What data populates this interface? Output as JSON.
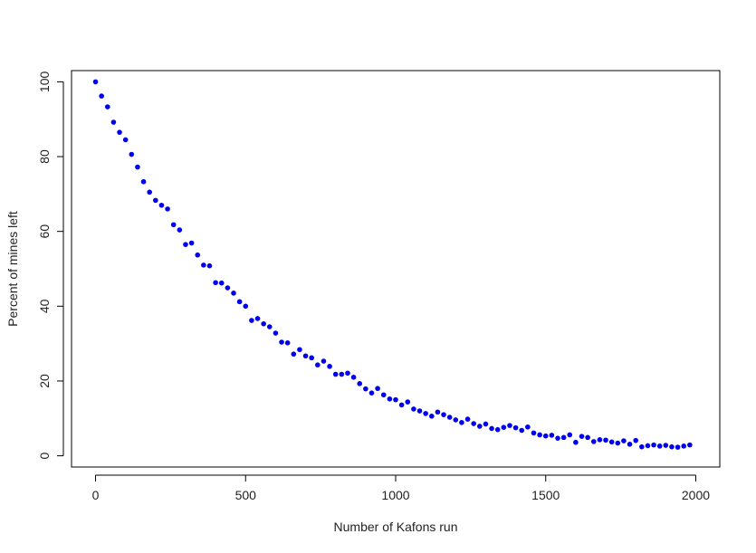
{
  "chart_data": {
    "type": "scatter",
    "title": "",
    "xlabel": "Number of Kafons run",
    "ylabel": "Percent of mines left",
    "xlim": [
      -80,
      2080
    ],
    "ylim": [
      -3,
      103
    ],
    "x_ticks": [
      0,
      500,
      1000,
      1500,
      2000
    ],
    "x_tick_labels": [
      "0",
      "500",
      "1000",
      "1500",
      "2000"
    ],
    "y_ticks": [
      0,
      20,
      40,
      60,
      80,
      100
    ],
    "y_tick_labels": [
      "0",
      "20",
      "40",
      "60",
      "80",
      "100"
    ],
    "grid": false,
    "point_color": "#0000ee",
    "series": [
      {
        "x": [
          0,
          20,
          40,
          60,
          80,
          100,
          120,
          140,
          160,
          180,
          200,
          220,
          240,
          260,
          280,
          300,
          320,
          340,
          360,
          380,
          400,
          420,
          440,
          460,
          480,
          500,
          520,
          540,
          560,
          580,
          600,
          620,
          640,
          660,
          680,
          700,
          720,
          740,
          760,
          780,
          800,
          820,
          840,
          860,
          880,
          900,
          920,
          940,
          960,
          980,
          1000,
          1020,
          1040,
          1060,
          1080,
          1100,
          1120,
          1140,
          1160,
          1180,
          1200,
          1220,
          1240,
          1260,
          1280,
          1300,
          1320,
          1340,
          1360,
          1380,
          1400,
          1420,
          1440,
          1460,
          1480,
          1500,
          1520,
          1540,
          1560,
          1580,
          1600,
          1620,
          1640,
          1660,
          1680,
          1700,
          1720,
          1740,
          1760,
          1780,
          1800,
          1820,
          1840,
          1860,
          1880,
          1900,
          1920,
          1940,
          1960,
          1980
        ],
        "y": [
          100,
          96.2,
          93.3,
          89.2,
          86.5,
          84.5,
          80.6,
          77.2,
          73.3,
          70.5,
          68.3,
          67.0,
          66.0,
          61.8,
          60.4,
          56.5,
          56.9,
          53.7,
          51.0,
          50.8,
          46.3,
          46.2,
          44.9,
          43.5,
          41.2,
          40.0,
          36.2,
          36.7,
          35.3,
          34.5,
          32.8,
          30.4,
          30.2,
          27.2,
          28.4,
          26.7,
          26.2,
          24.3,
          25.3,
          23.9,
          21.8,
          21.8,
          22.1,
          21.0,
          19.3,
          17.9,
          16.8,
          18.0,
          16.3,
          15.2,
          15.0,
          13.6,
          14.4,
          12.5,
          12.0,
          11.3,
          10.6,
          11.7,
          11.0,
          10.3,
          9.6,
          8.9,
          9.8,
          8.6,
          7.9,
          8.5,
          7.3,
          7.0,
          7.6,
          8.1,
          7.5,
          6.8,
          7.7,
          6.1,
          5.6,
          5.3,
          5.5,
          4.7,
          4.9,
          5.6,
          3.6,
          5.2,
          4.9,
          3.8,
          4.3,
          4.2,
          3.7,
          3.4,
          4.0,
          3.1,
          4.1,
          2.4,
          2.7,
          2.9,
          2.6,
          2.8,
          2.4,
          2.3,
          2.6,
          2.9
        ]
      }
    ]
  }
}
